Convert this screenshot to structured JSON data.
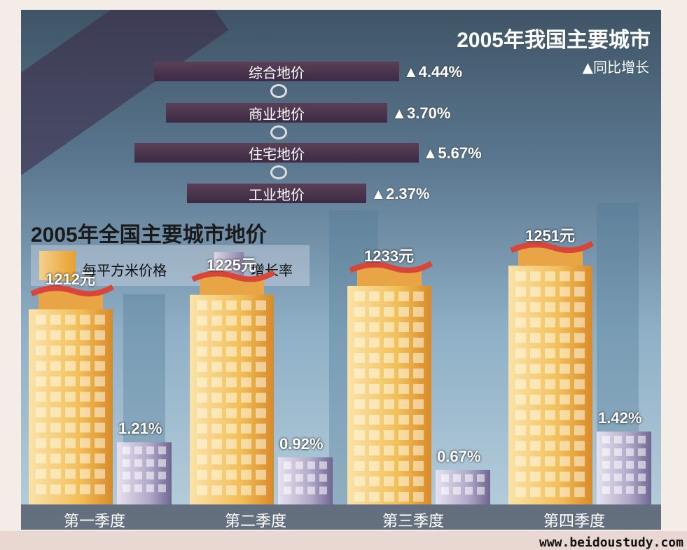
{
  "chart_data": {
    "type": "bar",
    "title": "2005年全国主要城市地价",
    "legend": [
      "每平方米价格",
      "增长率"
    ],
    "categories": [
      "第一季度",
      "第二季度",
      "第三季度",
      "第四季度"
    ],
    "series": [
      {
        "name": "每平方米价格",
        "values": [
          1212,
          1225,
          1233,
          1251
        ],
        "labels": [
          "1212元",
          "1225元",
          "1233元",
          "1251元"
        ],
        "color": "#f0b84a"
      },
      {
        "name": "增长率",
        "values": [
          1.21,
          0.92,
          0.67,
          1.42
        ],
        "labels": [
          "1.21%",
          "0.92%",
          "0.67%",
          "1.42%"
        ],
        "color": "#9a90b8"
      }
    ],
    "ylim": [
      1150,
      1260
    ]
  },
  "top_chart": {
    "title": "2005年我国主要城市",
    "legend": "▲同比增长",
    "items": [
      {
        "label": "综合地价",
        "value": "▲4.44%",
        "growth": 4.44
      },
      {
        "label": "商业地价",
        "value": "▲3.70%",
        "growth": 3.7
      },
      {
        "label": "住宅地价",
        "value": "▲5.67%",
        "growth": 5.67
      },
      {
        "label": "工业地价",
        "value": "▲2.37%",
        "growth": 2.37
      }
    ]
  },
  "watermark": "www.beidoustudy.com",
  "colors": {
    "price": "#f0b84a",
    "growth": "#9a90b8",
    "sky_top": "#3f5466",
    "sky_bottom": "#b7cfdc",
    "bar": "#4a3450"
  }
}
